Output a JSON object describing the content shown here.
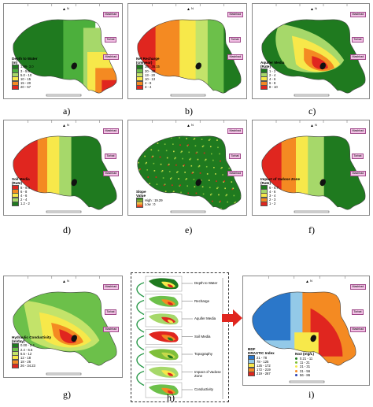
{
  "panels": [
    {
      "key": "a",
      "caption": "a)",
      "title": "Depth to Water",
      "unit": "(m)",
      "legend": [
        "1.96- 3.0",
        "3 - 5.0",
        "5.0 - 10",
        "10 - 15",
        "15 - 20",
        "20 - 57"
      ],
      "colors": [
        "#1f7a1f",
        "#4caf3c",
        "#a6d86a",
        "#f7e84a",
        "#f48a22",
        "#e0261f"
      ]
    },
    {
      "key": "b",
      "caption": "b)",
      "title": "Net Recharge",
      "unit": "(cm/year)",
      "legend": [
        "30 - 35.15",
        "20 - 30",
        "13 - 20",
        "10 - 13",
        "4 - 8",
        "3 - 4"
      ],
      "colors": [
        "#1f7a1f",
        "#6cc04a",
        "#c3e36a",
        "#f7e84a",
        "#f48a22",
        "#e0261f"
      ]
    },
    {
      "key": "c",
      "caption": "c)",
      "title": "Aquifer Media",
      "unit": "(Rate)",
      "legend": [
        "1 - 2",
        "2 - 4",
        "4 - 6",
        "6 - 8",
        "8 - 10"
      ],
      "colors": [
        "#1f7a1f",
        "#a6d86a",
        "#f7e84a",
        "#f48a22",
        "#e0261f"
      ]
    },
    {
      "key": "d",
      "caption": "d)",
      "title": "Soil Media",
      "unit": "(Rate)",
      "legend": [
        "8 - 9.4",
        "6 - 8",
        "4 - 6",
        "2 - 4",
        "1.2 - 2"
      ],
      "colors": [
        "#e0261f",
        "#f48a22",
        "#f7e84a",
        "#a6d86a",
        "#1f7a1f"
      ]
    },
    {
      "key": "e",
      "caption": "e)",
      "title": "Slope",
      "unit": "Value",
      "legend": [
        "High : 19.29",
        "Low : 0"
      ],
      "colors": [
        "#1f7a1f",
        "#e0261f"
      ]
    },
    {
      "key": "f",
      "caption": "f)",
      "title": "Impact of Vadose Zone",
      "unit": "(Rate)",
      "legend": [
        "6 - 6.7",
        "4 - 6",
        "3 - 4",
        "2 - 3",
        "1 - 2"
      ],
      "colors": [
        "#1f7a1f",
        "#a6d86a",
        "#f7e84a",
        "#f48a22",
        "#e0261f"
      ]
    },
    {
      "key": "g",
      "caption": "g)",
      "title": "Hydraulic Conductivity",
      "unit": "(m/day)",
      "legend": [
        "0.00 - 2.4",
        "2.4 - 6.5",
        "6.5 - 12",
        "12 - 18",
        "18 - 26",
        "26 - 34.23"
      ],
      "colors": [
        "#1f7a1f",
        "#6cc04a",
        "#c3e36a",
        "#f7e84a",
        "#f48a22",
        "#e0261f"
      ]
    },
    {
      "key": "i",
      "caption": "i)",
      "title": "BDF",
      "unit": "DRASTIC Index",
      "legend": [
        "21 - 78",
        "78 - 125",
        "125 - 172",
        "172 - 219",
        "219 - 267"
      ],
      "colors": [
        "#2b77c9",
        "#93c9e8",
        "#f7e84a",
        "#f48a22",
        "#e0261f"
      ],
      "no3_title": "No3 (mg/L)",
      "no3_legend": [
        "0.21 - 11",
        "11 - 21",
        "21 - 31",
        "31 - 56",
        "56 - 86"
      ]
    }
  ],
  "flow": {
    "caption": "h)",
    "labels": [
      "Depth to Water",
      "Recharge",
      "Aquifer Media",
      "Soil Media",
      "Topography",
      "Impact of Vadose Zone",
      "Conductivity"
    ]
  },
  "towns": {
    "mashhad_upper": "Mashhad",
    "torbat": "Torbat",
    "mashhad": "Mashhad"
  },
  "north": "N",
  "colors": {
    "arrow": "#e0261f",
    "connector": "#2a9a4a",
    "tag_bg": "#f3c2e6"
  }
}
